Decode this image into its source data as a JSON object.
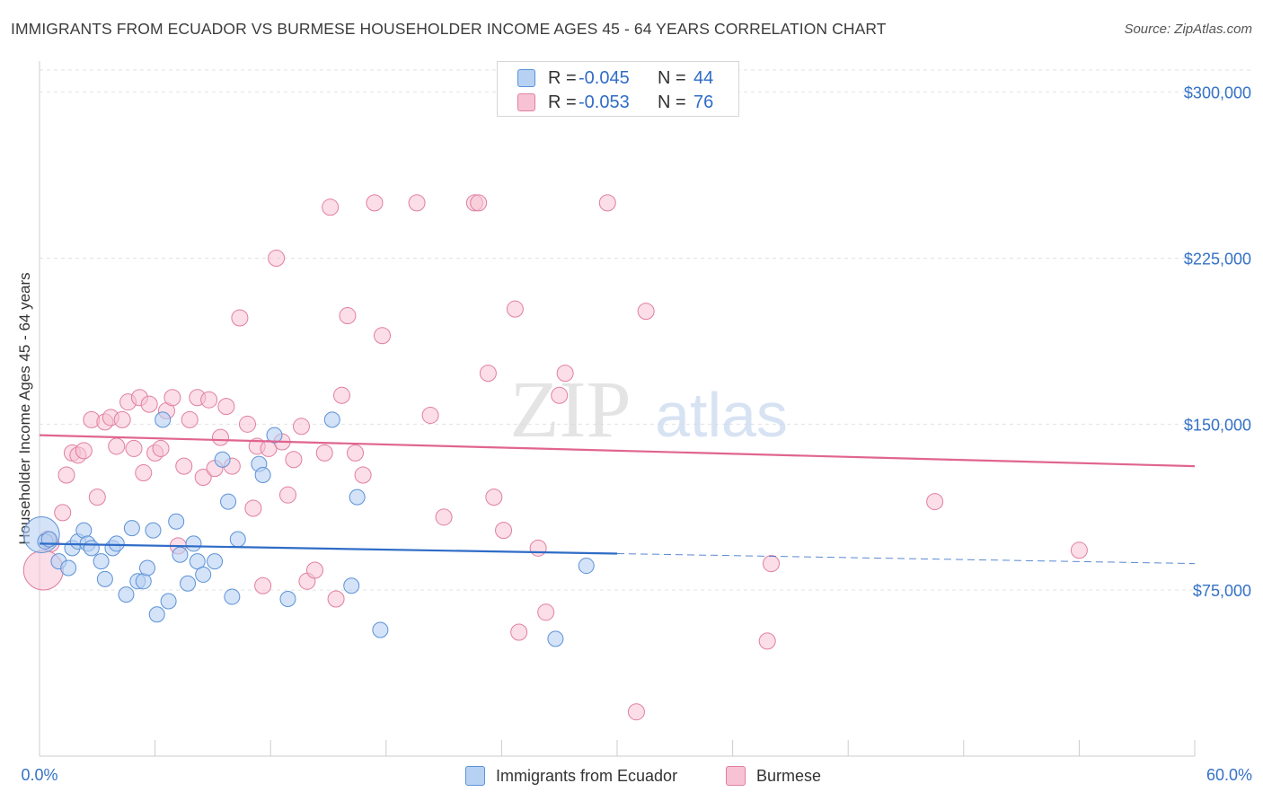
{
  "header": {
    "title": "IMMIGRANTS FROM ECUADOR VS BURMESE HOUSEHOLDER INCOME AGES 45 - 64 YEARS CORRELATION CHART",
    "source": "Source: ZipAtlas.com"
  },
  "watermark": {
    "zip": "ZIP",
    "atlas": "atlas"
  },
  "legend_top": {
    "rows": [
      {
        "r_label": "R =",
        "r_value": "-0.045",
        "n_label": "N =",
        "n_value": "44"
      },
      {
        "r_label": "R =",
        "r_value": "-0.053",
        "n_label": "N =",
        "n_value": "76"
      }
    ]
  },
  "chart_data": {
    "type": "scatter",
    "ylabel": "Householder Income Ages 45 - 64 years",
    "xlabel": "",
    "xlim": [
      0,
      60
    ],
    "ylim": [
      0,
      310000
    ],
    "x_tick_labels": [
      "0.0%",
      "60.0%"
    ],
    "y_ticks": [
      75000,
      150000,
      225000,
      300000
    ],
    "y_tick_labels": [
      "$75,000",
      "$150,000",
      "$225,000",
      "$300,000"
    ],
    "grid": true,
    "legend_position": "bottom",
    "colors": {
      "ecuador_fill": "#b7d1f3",
      "ecuador_stroke": "#5c92d6",
      "ecuador_line": "#2f6cc7",
      "burmese_fill": "#f7c3d4",
      "burmese_stroke": "#e17fa0",
      "burmese_line": "#e06590",
      "tick_label": "#3572c6",
      "grid": "#e2e2e2"
    },
    "series": [
      {
        "name": "Immigrants from Ecuador",
        "trend": {
          "x0": 0,
          "y0": 96000,
          "x1": 30,
          "y1": 91500,
          "x_dashed_end": 60,
          "y_dashed_end": 87000
        },
        "points": [
          [
            0.1,
            100000
          ],
          [
            0.3,
            97000
          ],
          [
            0.5,
            98000
          ],
          [
            1.0,
            88000
          ],
          [
            1.5,
            85000
          ],
          [
            1.7,
            94000
          ],
          [
            2.0,
            97000
          ],
          [
            2.3,
            102000
          ],
          [
            2.5,
            96000
          ],
          [
            2.7,
            94000
          ],
          [
            3.2,
            88000
          ],
          [
            3.4,
            80000
          ],
          [
            3.8,
            94000
          ],
          [
            4.0,
            96000
          ],
          [
            4.5,
            73000
          ],
          [
            4.8,
            103000
          ],
          [
            5.1,
            79000
          ],
          [
            5.4,
            79000
          ],
          [
            5.6,
            85000
          ],
          [
            5.9,
            102000
          ],
          [
            6.1,
            64000
          ],
          [
            6.4,
            152000
          ],
          [
            6.7,
            70000
          ],
          [
            7.1,
            106000
          ],
          [
            7.3,
            91000
          ],
          [
            7.7,
            78000
          ],
          [
            8.0,
            96000
          ],
          [
            8.2,
            88000
          ],
          [
            8.5,
            82000
          ],
          [
            9.1,
            88000
          ],
          [
            9.5,
            134000
          ],
          [
            9.8,
            115000
          ],
          [
            10.0,
            72000
          ],
          [
            10.3,
            98000
          ],
          [
            11.4,
            132000
          ],
          [
            11.6,
            127000
          ],
          [
            12.2,
            145000
          ],
          [
            12.9,
            71000
          ],
          [
            15.2,
            152000
          ],
          [
            16.2,
            77000
          ],
          [
            16.5,
            117000
          ],
          [
            17.7,
            57000
          ],
          [
            26.8,
            53000
          ],
          [
            28.4,
            86000
          ]
        ]
      },
      {
        "name": "Burmese",
        "trend": {
          "x0": 0,
          "y0": 145000,
          "x1": 60,
          "y1": 131000
        },
        "points": [
          [
            0.2,
            84000
          ],
          [
            0.6,
            96000
          ],
          [
            1.2,
            110000
          ],
          [
            1.4,
            127000
          ],
          [
            1.7,
            137000
          ],
          [
            2.0,
            136000
          ],
          [
            2.3,
            138000
          ],
          [
            2.7,
            152000
          ],
          [
            3.0,
            117000
          ],
          [
            3.4,
            151000
          ],
          [
            3.7,
            153000
          ],
          [
            4.0,
            140000
          ],
          [
            4.3,
            152000
          ],
          [
            4.6,
            160000
          ],
          [
            4.9,
            139000
          ],
          [
            5.2,
            162000
          ],
          [
            5.4,
            128000
          ],
          [
            5.7,
            159000
          ],
          [
            6.0,
            137000
          ],
          [
            6.3,
            139000
          ],
          [
            6.6,
            156000
          ],
          [
            6.9,
            162000
          ],
          [
            7.2,
            95000
          ],
          [
            7.5,
            131000
          ],
          [
            7.8,
            152000
          ],
          [
            8.2,
            162000
          ],
          [
            8.5,
            126000
          ],
          [
            8.8,
            161000
          ],
          [
            9.1,
            130000
          ],
          [
            9.4,
            144000
          ],
          [
            9.7,
            158000
          ],
          [
            10.0,
            131000
          ],
          [
            10.4,
            198000
          ],
          [
            10.8,
            150000
          ],
          [
            11.1,
            112000
          ],
          [
            11.3,
            140000
          ],
          [
            11.6,
            77000
          ],
          [
            11.9,
            139000
          ],
          [
            12.3,
            225000
          ],
          [
            12.6,
            142000
          ],
          [
            12.9,
            118000
          ],
          [
            13.2,
            134000
          ],
          [
            13.6,
            149000
          ],
          [
            13.9,
            79000
          ],
          [
            14.3,
            84000
          ],
          [
            14.8,
            137000
          ],
          [
            15.1,
            248000
          ],
          [
            15.4,
            71000
          ],
          [
            15.7,
            163000
          ],
          [
            16.0,
            199000
          ],
          [
            16.4,
            137000
          ],
          [
            16.8,
            127000
          ],
          [
            17.4,
            250000
          ],
          [
            17.8,
            190000
          ],
          [
            19.6,
            250000
          ],
          [
            20.3,
            154000
          ],
          [
            21.0,
            108000
          ],
          [
            22.6,
            250000
          ],
          [
            22.8,
            250000
          ],
          [
            23.3,
            173000
          ],
          [
            23.6,
            117000
          ],
          [
            24.1,
            102000
          ],
          [
            24.7,
            202000
          ],
          [
            24.9,
            56000
          ],
          [
            25.9,
            94000
          ],
          [
            26.3,
            65000
          ],
          [
            27.0,
            163000
          ],
          [
            27.3,
            173000
          ],
          [
            29.5,
            250000
          ],
          [
            31.0,
            20000
          ],
          [
            31.5,
            201000
          ],
          [
            37.8,
            52000
          ],
          [
            38.0,
            87000
          ],
          [
            46.5,
            115000
          ],
          [
            54.0,
            93000
          ],
          [
            0.4,
            98000
          ]
        ]
      }
    ]
  }
}
